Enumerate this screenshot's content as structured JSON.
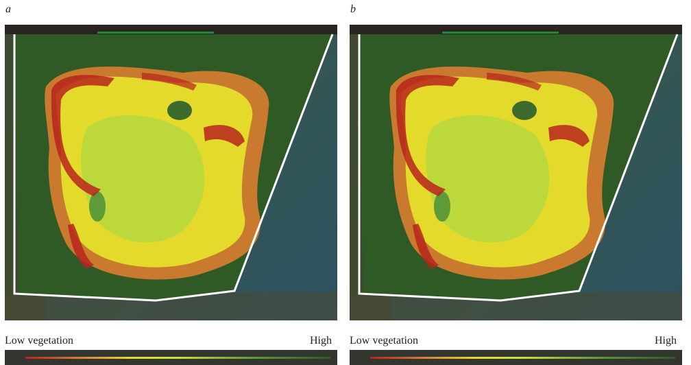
{
  "panels": [
    {
      "label": "a",
      "legend_low": "Low vegetation",
      "legend_high": "High"
    },
    {
      "label": "b",
      "legend_low": "Low vegetation",
      "legend_high": "High"
    }
  ]
}
